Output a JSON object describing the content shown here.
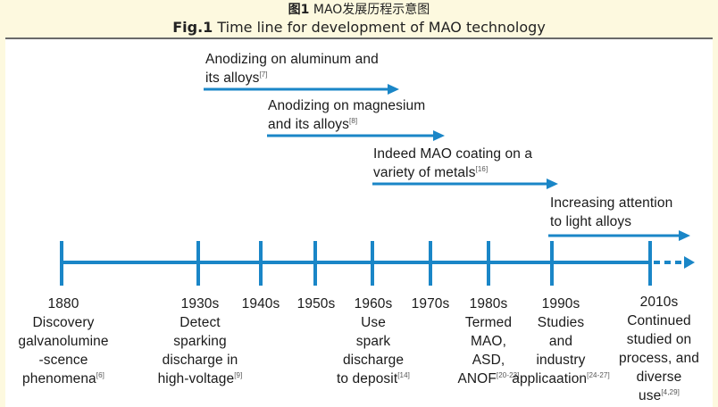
{
  "caption": {
    "cn_label": "图1",
    "cn_text": " MAO发展历程示意图",
    "en_label": "Fig.1",
    "en_text": " Time line for development of MAO technology"
  },
  "colors": {
    "accent": "#1a86c7",
    "background": "#fdf9df",
    "text": "#1a1a1a"
  },
  "events": [
    {
      "lines": [
        "Anodizing on aluminum and",
        "its alloys"
      ],
      "ref": "[7]"
    },
    {
      "lines": [
        "Anodizing on magnesium",
        "and its alloys"
      ],
      "ref": "[8]"
    },
    {
      "lines": [
        "Indeed MAO coating on a",
        "variety of metals"
      ],
      "ref": "[16]"
    },
    {
      "lines": [
        "Increasing attention",
        "to light alloys"
      ],
      "ref": ""
    }
  ],
  "eras": [
    {
      "year": "1880",
      "lines": [
        "Discovery",
        "galvanolumine",
        "-scence",
        "phenomena"
      ],
      "ref": "[6]"
    },
    {
      "year": "1930s",
      "lines": [
        "Detect",
        "sparking",
        "discharge in",
        "high-voltage"
      ],
      "ref": "[9]"
    },
    {
      "year": "1940s",
      "lines": [],
      "ref": ""
    },
    {
      "year": "1950s",
      "lines": [],
      "ref": ""
    },
    {
      "year": "1960s",
      "lines": [
        "Use",
        "spark",
        "discharge",
        "to deposit"
      ],
      "ref": "[14]"
    },
    {
      "year": "1970s",
      "lines": [],
      "ref": ""
    },
    {
      "year": "1980s",
      "lines": [
        "Termed",
        "MAO,",
        "ASD,",
        "ANOF"
      ],
      "ref": "[20-23]"
    },
    {
      "year": "1990s",
      "lines": [
        "Studies",
        "and",
        "industry",
        "applicaation"
      ],
      "ref": "[24-27]"
    },
    {
      "year": "2010s",
      "lines": [
        "Continued",
        "studied on",
        "process, and",
        "diverse",
        "use"
      ],
      "ref": "[4,29]"
    }
  ]
}
